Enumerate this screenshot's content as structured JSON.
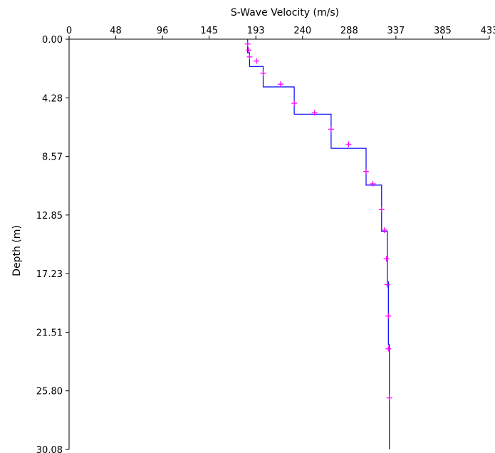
{
  "chart_data": {
    "type": "line",
    "title": "",
    "xlabel": "S-Wave Velocity (m/s)",
    "ylabel": "Depth (m)",
    "xlim": [
      0,
      433
    ],
    "ylim": [
      0,
      30.08
    ],
    "x_ticks": [
      "0",
      "48",
      "96",
      "145",
      "193",
      "240",
      "288",
      "337",
      "385",
      "433"
    ],
    "y_ticks": [
      "0.00",
      "4.28",
      "8.57",
      "12.85",
      "17.23",
      "21.51",
      "25.80",
      "30.08"
    ],
    "y_inverted": true,
    "x_axis_position": "top",
    "grid": false,
    "colors": {
      "profile": "#0000ff",
      "markers": "#ff00ff",
      "axis": "#000000"
    },
    "profile": {
      "velocity_m_s": [
        184,
        184,
        186,
        186,
        200,
        200,
        232,
        232,
        270,
        270,
        306,
        306,
        322,
        322,
        328,
        328,
        329,
        329,
        330,
        330
      ],
      "depth_m": [
        0.0,
        1.0,
        1.0,
        2.0,
        2.0,
        3.5,
        3.5,
        5.5,
        5.5,
        8.0,
        8.0,
        10.7,
        10.7,
        14.1,
        14.1,
        17.8,
        17.8,
        22.4,
        22.4,
        30.08
      ]
    },
    "marker_points": {
      "velocity_m_s": [
        184,
        185,
        186,
        193,
        200,
        218,
        232,
        253,
        270,
        288,
        306,
        313,
        322,
        325,
        327,
        328,
        329,
        329,
        330
      ],
      "depth_m": [
        0.35,
        0.8,
        1.3,
        1.6,
        2.5,
        3.3,
        4.7,
        5.4,
        6.6,
        7.7,
        9.7,
        10.6,
        12.5,
        14.0,
        16.1,
        18.0,
        20.3,
        22.7,
        26.3
      ]
    }
  }
}
